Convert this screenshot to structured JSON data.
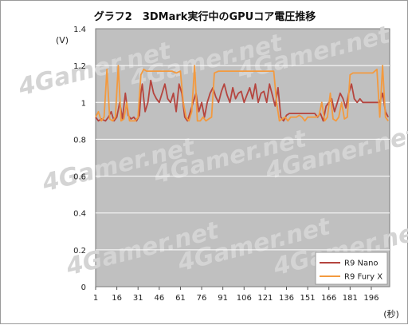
{
  "chart_data": {
    "type": "line",
    "title": "グラフ2　3DMark実行中のGPUコア電圧推移",
    "ylabel": "(V)",
    "xlabel": "(秒)",
    "ylim": [
      0,
      1.4
    ],
    "yticks": [
      "0",
      "0.2",
      "0.4",
      "0.6",
      "0.8",
      "1",
      "1.2",
      "1.4"
    ],
    "xlim": [
      1,
      209
    ],
    "xticks": [
      "1",
      "16",
      "31",
      "46",
      "61",
      "76",
      "91",
      "106",
      "121",
      "136",
      "151",
      "166",
      "181",
      "196"
    ],
    "grid": true,
    "legend_position": "bottom-right",
    "watermark": "4Gamer.net",
    "series": [
      {
        "name": "R9 Nano",
        "color": "#b5453f",
        "x": [
          1,
          3,
          5,
          8,
          10,
          12,
          14,
          16,
          18,
          20,
          22,
          24,
          26,
          28,
          30,
          32,
          33,
          34,
          36,
          38,
          40,
          42,
          44,
          46,
          48,
          50,
          52,
          54,
          56,
          58,
          60,
          62,
          64,
          66,
          68,
          70,
          72,
          74,
          76,
          78,
          80,
          82,
          84,
          86,
          88,
          90,
          92,
          94,
          96,
          98,
          100,
          102,
          104,
          106,
          108,
          110,
          112,
          114,
          116,
          118,
          120,
          122,
          124,
          126,
          128,
          130,
          132,
          134,
          136,
          138,
          140,
          142,
          144,
          146,
          148,
          150,
          152,
          154,
          156,
          158,
          160,
          162,
          164,
          166,
          168,
          170,
          172,
          174,
          176,
          178,
          180,
          182,
          184,
          186,
          188,
          190,
          192,
          194,
          196,
          198,
          200,
          202,
          204,
          206,
          208
        ],
        "values": [
          0.92,
          0.9,
          0.91,
          0.9,
          0.92,
          0.95,
          0.9,
          0.92,
          1.0,
          0.91,
          1.05,
          0.93,
          0.91,
          0.92,
          0.9,
          0.93,
          1.05,
          1.1,
          0.95,
          1.0,
          1.12,
          1.05,
          1.02,
          1.0,
          1.05,
          1.1,
          1.02,
          1.0,
          1.05,
          0.95,
          1.1,
          1.05,
          0.92,
          0.9,
          0.95,
          1.0,
          1.05,
          0.95,
          1.0,
          0.92,
          1.0,
          1.05,
          1.08,
          1.03,
          1.0,
          1.06,
          1.1,
          1.04,
          1.0,
          1.08,
          1.02,
          1.05,
          1.06,
          1.0,
          1.04,
          1.08,
          1.02,
          1.1,
          1.0,
          1.05,
          1.06,
          1.0,
          1.1,
          1.04,
          0.98,
          1.08,
          0.92,
          0.9,
          0.93,
          0.94,
          0.94,
          0.94,
          0.94,
          0.94,
          0.94,
          0.94,
          0.94,
          0.94,
          0.94,
          0.92,
          0.94,
          0.9,
          0.98,
          1.0,
          1.02,
          0.95,
          1.0,
          1.05,
          1.02,
          0.97,
          1.05,
          1.1,
          1.02,
          1.0,
          1.02,
          1.0,
          1.0,
          1.0,
          1.0,
          1.0,
          1.0,
          1.0,
          1.05,
          0.95,
          0.92
        ]
      },
      {
        "name": "R9 Fury X",
        "color": "#f39a3f",
        "x": [
          1,
          3,
          5,
          7,
          9,
          11,
          13,
          15,
          17,
          19,
          21,
          23,
          25,
          27,
          29,
          31,
          33,
          35,
          37,
          40,
          43,
          46,
          49,
          52,
          55,
          58,
          61,
          63,
          65,
          67,
          69,
          71,
          73,
          75,
          77,
          79,
          81,
          83,
          85,
          88,
          91,
          94,
          97,
          100,
          103,
          106,
          109,
          112,
          115,
          118,
          121,
          124,
          127,
          129,
          131,
          133,
          135,
          137,
          139,
          141,
          143,
          145,
          147,
          149,
          151,
          153,
          155,
          157,
          159,
          161,
          163,
          165,
          167,
          169,
          171,
          173,
          175,
          177,
          179,
          181,
          183,
          185,
          188,
          191,
          194,
          197,
          200,
          202,
          204,
          206,
          208
        ],
        "values": [
          0.92,
          0.95,
          0.9,
          0.92,
          1.18,
          0.91,
          0.9,
          0.92,
          1.2,
          0.9,
          0.91,
          1.0,
          0.9,
          0.9,
          0.9,
          0.92,
          1.15,
          1.18,
          1.17,
          1.17,
          1.17,
          1.17,
          1.17,
          1.17,
          1.17,
          1.16,
          1.17,
          1.0,
          0.92,
          0.9,
          0.95,
          1.2,
          0.9,
          0.9,
          0.92,
          0.9,
          0.91,
          0.92,
          1.16,
          1.17,
          1.17,
          1.17,
          1.17,
          1.17,
          1.17,
          1.17,
          1.17,
          1.17,
          1.17,
          1.17,
          1.17,
          1.17,
          1.17,
          1.0,
          0.9,
          0.91,
          0.92,
          0.9,
          0.92,
          0.92,
          0.92,
          0.93,
          0.92,
          0.9,
          0.92,
          0.92,
          0.92,
          0.92,
          0.93,
          1.0,
          0.9,
          0.92,
          1.05,
          0.91,
          0.9,
          0.92,
          1.0,
          0.91,
          0.92,
          1.15,
          1.16,
          1.16,
          1.16,
          1.16,
          1.16,
          1.16,
          1.18,
          0.92,
          1.2,
          0.92,
          0.9
        ]
      }
    ]
  }
}
